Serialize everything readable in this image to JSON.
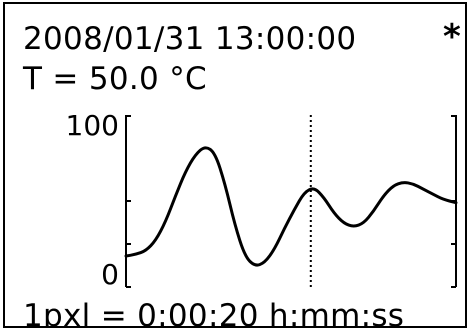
{
  "header": {
    "timestamp": "2008/01/31 13:00:00",
    "indicator": "*",
    "temperature": "T = 50.0 °C"
  },
  "chart_data": {
    "type": "line",
    "title": "",
    "xlabel": "",
    "ylabel": "",
    "ylim": [
      0,
      100
    ],
    "y_ticks": [
      "100",
      "0"
    ],
    "cursor_fraction": 0.56,
    "series": [
      {
        "values": [
          [
            0.0,
            18
          ],
          [
            0.03,
            19
          ],
          [
            0.06,
            21
          ],
          [
            0.09,
            27
          ],
          [
            0.12,
            38
          ],
          [
            0.15,
            53
          ],
          [
            0.18,
            67
          ],
          [
            0.21,
            77
          ],
          [
            0.24,
            82
          ],
          [
            0.27,
            78
          ],
          [
            0.3,
            60
          ],
          [
            0.33,
            36
          ],
          [
            0.36,
            18
          ],
          [
            0.39,
            12
          ],
          [
            0.42,
            14
          ],
          [
            0.45,
            22
          ],
          [
            0.48,
            34
          ],
          [
            0.51,
            45
          ],
          [
            0.54,
            55
          ],
          [
            0.57,
            58
          ],
          [
            0.6,
            52
          ],
          [
            0.63,
            43
          ],
          [
            0.66,
            37
          ],
          [
            0.69,
            35
          ],
          [
            0.72,
            37
          ],
          [
            0.75,
            44
          ],
          [
            0.78,
            53
          ],
          [
            0.81,
            59
          ],
          [
            0.84,
            61
          ],
          [
            0.87,
            60
          ],
          [
            0.9,
            57
          ],
          [
            0.93,
            54
          ],
          [
            0.96,
            51
          ],
          [
            1.0,
            49
          ]
        ]
      }
    ]
  },
  "footer": {
    "scale": "1pxl = 0:00:20 h:mm:ss"
  }
}
